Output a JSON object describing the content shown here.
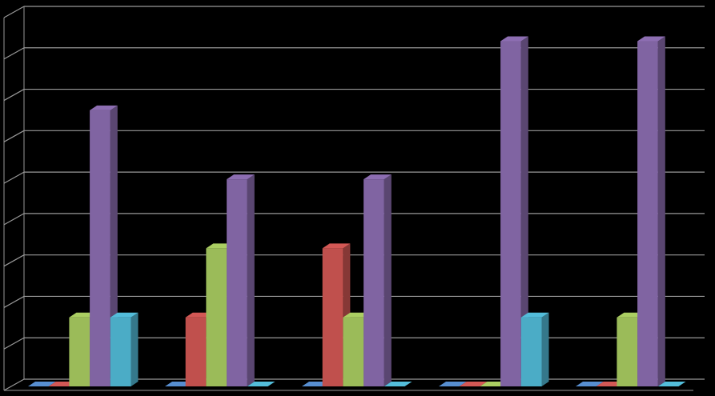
{
  "chart_data": {
    "type": "bar3d",
    "categories": [
      null,
      null,
      null,
      null,
      null
    ],
    "series": [
      {
        "color": "#4f81bd",
        "values": [
          0,
          0,
          0,
          0,
          0
        ]
      },
      {
        "color": "#c0504d",
        "values": [
          0,
          1,
          2,
          0,
          0
        ]
      },
      {
        "color": "#9bbb59",
        "values": [
          1,
          2,
          1,
          0,
          1
        ]
      },
      {
        "color": "#8064a2",
        "values": [
          4,
          3,
          3,
          5,
          5
        ]
      },
      {
        "color": "#4bacc6",
        "values": [
          1,
          0,
          0,
          1,
          0
        ]
      }
    ],
    "ylim": [
      0,
      5.4
    ],
    "yticks": [
      0,
      0.6,
      1.2,
      1.8,
      2.4,
      3,
      3.6,
      4.2,
      4.8,
      5.4
    ],
    "grid": true
  }
}
